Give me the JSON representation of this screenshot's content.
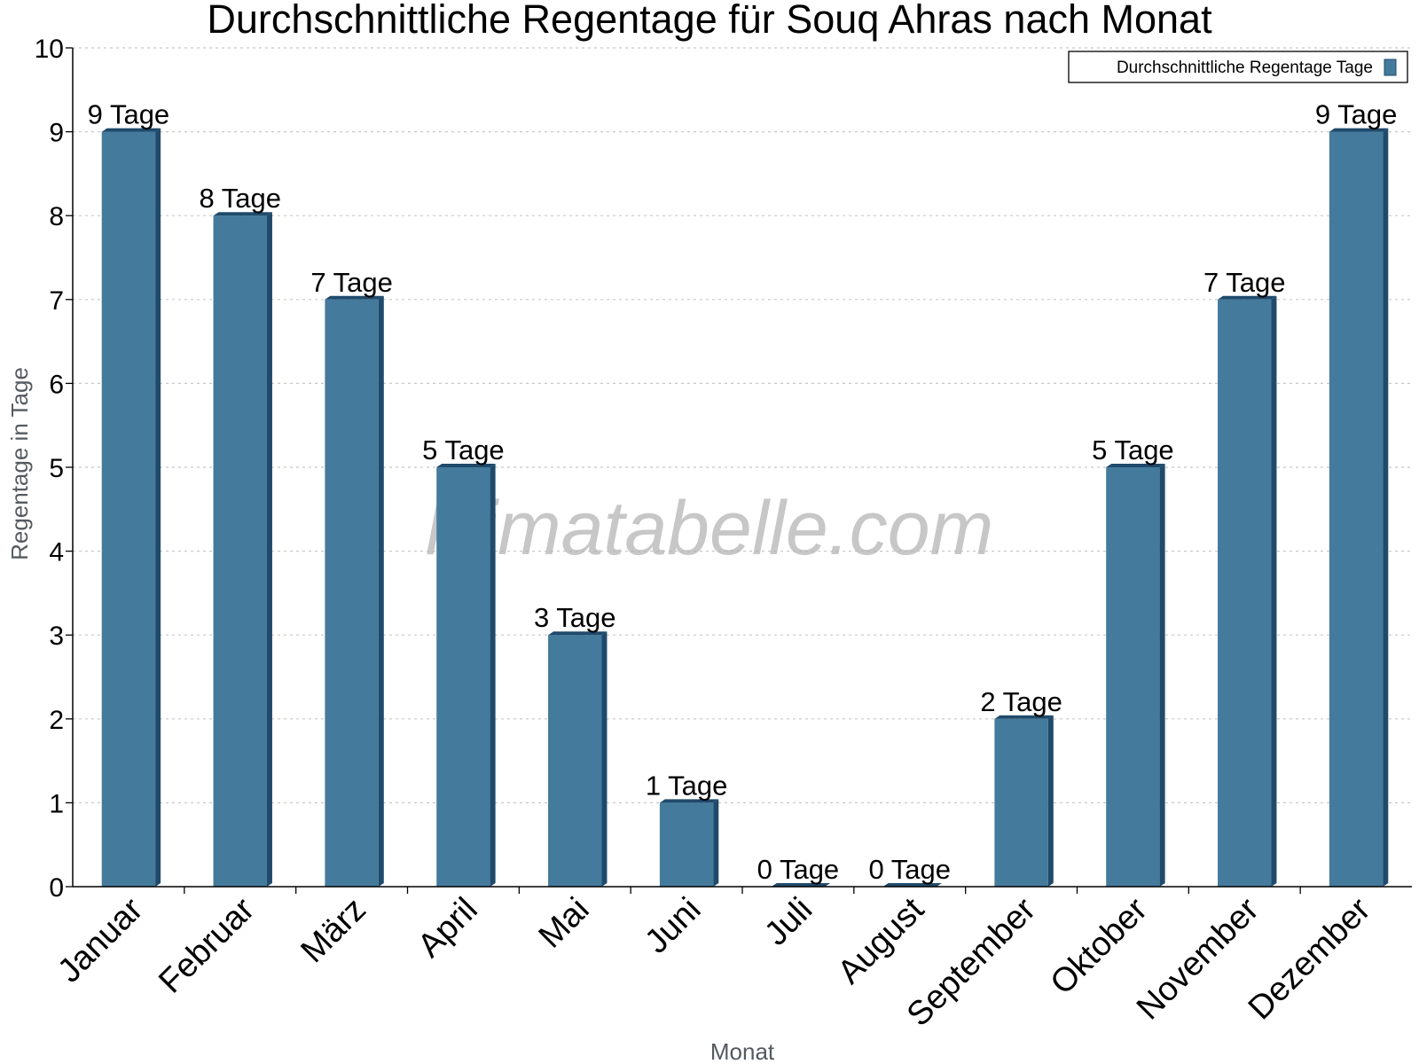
{
  "chart_data": {
    "type": "bar",
    "title": "Durchschnittliche Regentage für Souq Ahras nach Monat",
    "xlabel": "Monat",
    "ylabel": "Regentage in Tage",
    "ylim": [
      0,
      10
    ],
    "yticks": [
      "0",
      "1",
      "2",
      "3",
      "4",
      "5",
      "6",
      "7",
      "8",
      "9",
      "10"
    ],
    "grid": true,
    "legend_position": "top-right",
    "categories": [
      "Januar",
      "Februar",
      "März",
      "April",
      "Mai",
      "Juni",
      "Juli",
      "August",
      "September",
      "Oktober",
      "November",
      "Dezember"
    ],
    "series": [
      {
        "name": "Durchschnittliche Regentage Tage",
        "values": [
          9,
          8,
          7,
          5,
          3,
          1,
          0,
          0,
          2,
          5,
          7,
          9
        ],
        "labels": [
          "9 Tage",
          "8 Tage",
          "7 Tage",
          "5 Tage",
          "3 Tage",
          "1 Tage",
          "0 Tage",
          "0 Tage",
          "2 Tage",
          "5 Tage",
          "7 Tage",
          "9 Tage"
        ],
        "color": "#447a9c",
        "shade_color": "#1f4a6b"
      }
    ],
    "watermark": "klimatabelle.com"
  }
}
